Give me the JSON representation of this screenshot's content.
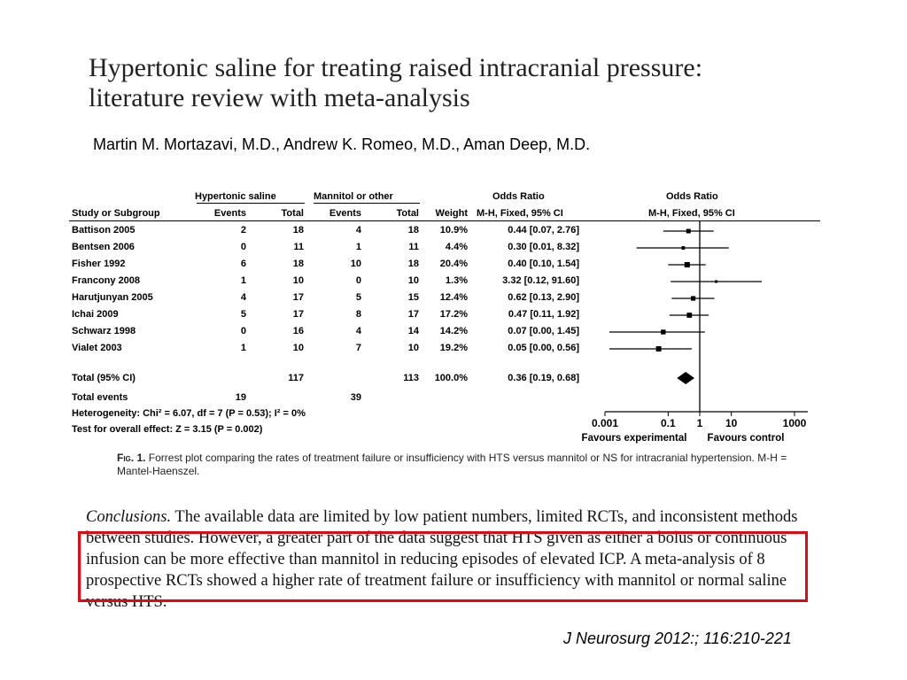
{
  "title": {
    "line1": "Hypertonic saline for treating raised intracranial pressure:",
    "line2": "literature review with meta-analysis"
  },
  "authors": "Martin M. Mortazavi, M.D., Andrew K. Romeo, M.D., Aman Deep, M.D.",
  "forest_table": {
    "group_headers": {
      "experimental": "Hypertonic saline",
      "control": "Mannitol or other",
      "odds_ratio_left": "Odds Ratio",
      "odds_ratio_right": "Odds Ratio"
    },
    "column_headers": {
      "study": "Study or Subgroup",
      "exp_events": "Events",
      "exp_total": "Total",
      "ctl_events": "Events",
      "ctl_total": "Total",
      "weight": "Weight",
      "or_method_left": "M-H, Fixed, 95% CI",
      "or_method_right": "M-H, Fixed, 95% CI"
    },
    "rows": [
      {
        "study": "Battison 2005",
        "exp_events": "2",
        "exp_total": "18",
        "ctl_events": "4",
        "ctl_total": "18",
        "weight": "10.9%",
        "or": "0.44 [0.07, 2.76]"
      },
      {
        "study": "Bentsen 2006",
        "exp_events": "0",
        "exp_total": "11",
        "ctl_events": "1",
        "ctl_total": "11",
        "weight": "4.4%",
        "or": "0.30 [0.01, 8.32]"
      },
      {
        "study": "Fisher 1992",
        "exp_events": "6",
        "exp_total": "18",
        "ctl_events": "10",
        "ctl_total": "18",
        "weight": "20.4%",
        "or": "0.40 [0.10, 1.54]"
      },
      {
        "study": "Francony 2008",
        "exp_events": "1",
        "exp_total": "10",
        "ctl_events": "0",
        "ctl_total": "10",
        "weight": "1.3%",
        "or": "3.32 [0.12, 91.60]"
      },
      {
        "study": "Harutjunyan 2005",
        "exp_events": "4",
        "exp_total": "17",
        "ctl_events": "5",
        "ctl_total": "15",
        "weight": "12.4%",
        "or": "0.62 [0.13, 2.90]"
      },
      {
        "study": "Ichai 2009",
        "exp_events": "5",
        "exp_total": "17",
        "ctl_events": "8",
        "ctl_total": "17",
        "weight": "17.2%",
        "or": "0.47 [0.11, 1.92]"
      },
      {
        "study": "Schwarz 1998",
        "exp_events": "0",
        "exp_total": "16",
        "ctl_events": "4",
        "ctl_total": "14",
        "weight": "14.2%",
        "or": "0.07 [0.00, 1.45]"
      },
      {
        "study": "Vialet 2003",
        "exp_events": "1",
        "exp_total": "10",
        "ctl_events": "7",
        "ctl_total": "10",
        "weight": "19.2%",
        "or": "0.05 [0.00, 0.56]"
      }
    ],
    "total_row": {
      "study": "Total (95% CI)",
      "exp_total": "117",
      "ctl_total": "113",
      "weight": "100.0%",
      "or": "0.36 [0.19, 0.68]"
    },
    "total_events": {
      "label": "Total events",
      "exp": "19",
      "ctl": "39"
    },
    "heterogeneity": "Heterogeneity: Chi² = 6.07, df = 7 (P = 0.53); I² = 0%",
    "overall_effect": "Test for overall effect: Z = 3.15 (P = 0.002)"
  },
  "chart_data": {
    "type": "scatter",
    "subtype": "forest",
    "x_scale": "log",
    "xlim": [
      0.001,
      1000
    ],
    "x_ticks": [
      "0.001",
      "0.1",
      "1",
      "10",
      "1000"
    ],
    "x_tick_values": [
      0.001,
      0.1,
      1,
      10,
      1000
    ],
    "reference_line": 1,
    "title": "Odds Ratio",
    "subtitle": "M-H, Fixed, 95% CI",
    "xlabel_left": "Favours experimental",
    "xlabel_right": "Favours control",
    "categories": [
      "Battison 2005",
      "Bentsen 2006",
      "Fisher 1992",
      "Francony 2008",
      "Harutjunyan 2005",
      "Ichai 2009",
      "Schwarz 1998",
      "Vialet 2003"
    ],
    "series": [
      {
        "name": "",
        "or": [
          0.44,
          0.3,
          0.4,
          3.32,
          0.62,
          0.47,
          0.07,
          0.05
        ],
        "lower": [
          0.07,
          0.01,
          0.1,
          0.12,
          0.13,
          0.11,
          0.0,
          0.0
        ],
        "upper": [
          2.76,
          8.32,
          1.54,
          91.6,
          2.9,
          1.92,
          1.45,
          0.56
        ],
        "weight": [
          10.9,
          4.4,
          20.4,
          1.3,
          12.4,
          17.2,
          14.2,
          19.2
        ]
      }
    ],
    "pooled": {
      "or": 0.36,
      "lower": 0.19,
      "upper": 0.68
    }
  },
  "caption": {
    "label": "Fig. 1.",
    "text": "Forrest plot comparing the rates of treatment failure or insufficiency with HTS versus mannitol or NS for intracranial hypertension. M-H = Mantel-Haenszel."
  },
  "conclusions": {
    "label": "Conclusions.",
    "text": "The available data are limited by low patient numbers, limited RCTs, and inconsistent methods between studies. However, a greater part of the data suggest that HTS given as either a bolus or continuous infusion can be more effective than mannitol in reducing episodes of elevated ICP. A meta-analysis of 8 prospective RCTs showed a higher rate of treatment failure or insufficiency with mannitol or normal saline versus HTS."
  },
  "colors": {
    "highlight_box": "#e30613"
  },
  "journal": "J Neurosurg 2012:; 116:210-221"
}
